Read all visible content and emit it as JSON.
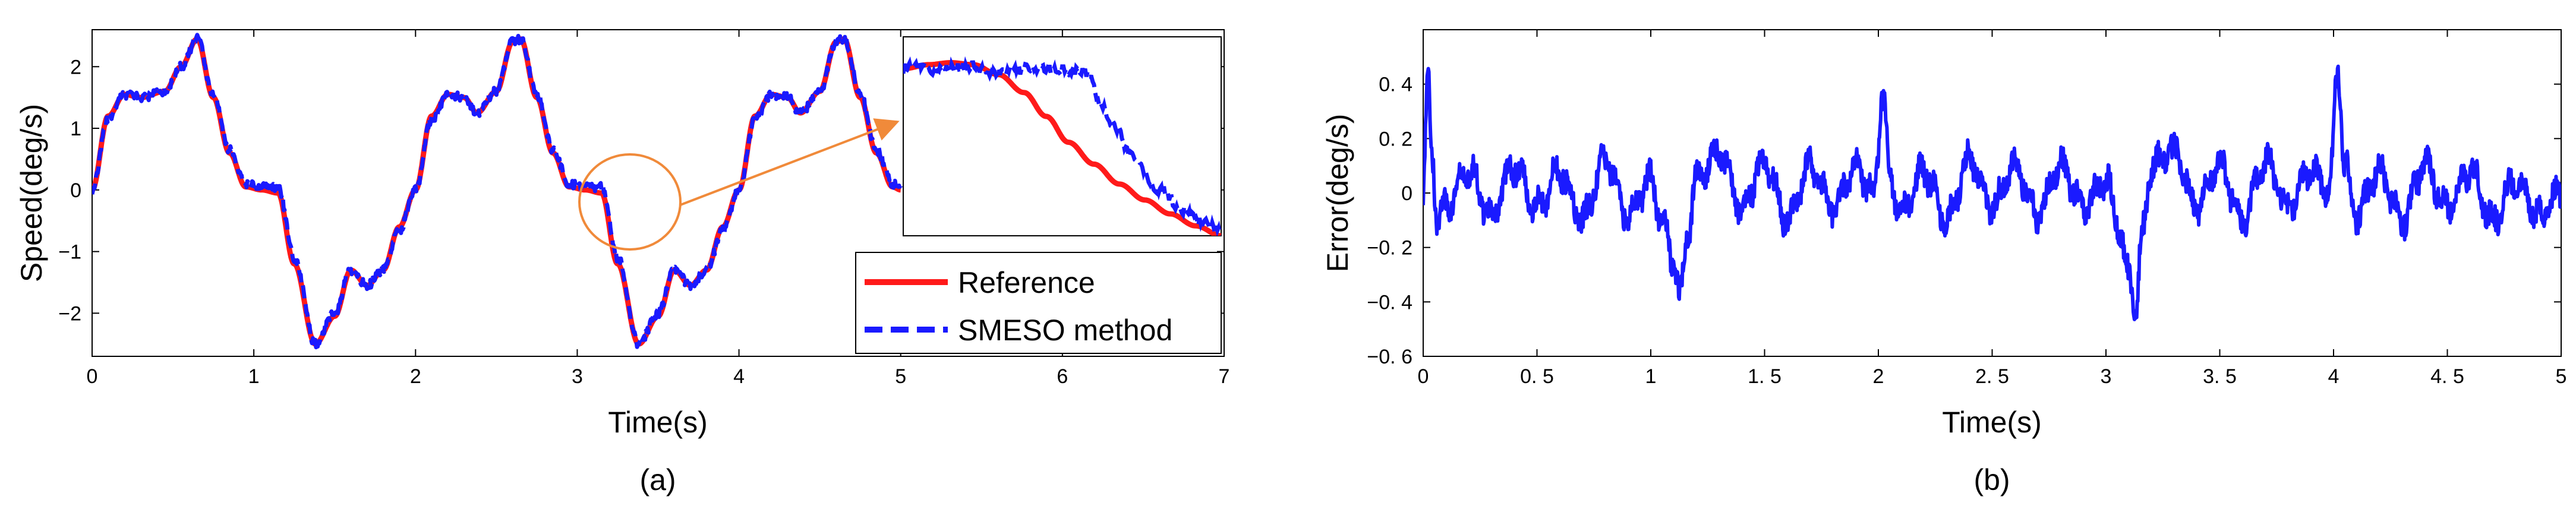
{
  "chart_data": [
    {
      "type": "line",
      "subplot_label": "(a)",
      "xlabel": "Time(s)",
      "ylabel": "Speed(deg/s)",
      "xlim": [
        0,
        7
      ],
      "ylim": [
        -2.7,
        2.6
      ],
      "xticks": [
        0,
        1,
        2,
        3,
        4,
        5,
        6,
        7
      ],
      "xtick_labels": [
        "0",
        "1",
        "2",
        "3",
        "4",
        "5",
        "6",
        "7"
      ],
      "yticks": [
        -2,
        -1,
        0,
        1,
        2
      ],
      "ytick_labels": [
        "−2",
        "−1",
        "0",
        "1",
        "2"
      ],
      "grid": false,
      "legend_position": "bottom-right",
      "series": [
        {
          "name": "Reference",
          "color": "#ff1a1a",
          "style": "solid",
          "x": [
            0,
            0.1,
            0.2,
            0.3,
            0.45,
            0.55,
            0.65,
            0.75,
            0.85,
            0.95,
            1.05,
            1.15,
            1.25,
            1.38,
            1.5,
            1.6,
            1.7,
            1.8,
            1.9,
            2.0,
            2.1,
            2.2,
            2.3,
            2.38,
            2.5,
            2.6,
            2.65,
            2.75,
            2.85,
            2.95,
            3.05,
            3.15,
            3.25,
            3.38,
            3.5,
            3.6,
            3.7,
            3.8,
            3.9,
            4.0,
            4.1,
            4.2,
            4.3,
            4.38,
            4.5,
            4.6,
            4.65,
            4.75,
            4.85,
            4.95,
            5.0
          ],
          "y": [
            0,
            1.2,
            1.55,
            1.5,
            1.6,
            2.0,
            2.45,
            1.5,
            0.6,
            0.05,
            0.0,
            -0.05,
            -1.2,
            -2.5,
            -2.05,
            -1.3,
            -1.55,
            -1.3,
            -0.6,
            0.0,
            1.2,
            1.55,
            1.5,
            1.25,
            1.6,
            2.4,
            2.45,
            1.5,
            0.6,
            0.05,
            0.0,
            -0.05,
            -1.2,
            -2.5,
            -2.05,
            -1.3,
            -1.55,
            -1.3,
            -0.6,
            0.0,
            1.2,
            1.55,
            1.5,
            1.25,
            1.6,
            2.4,
            2.45,
            1.5,
            0.6,
            0.05,
            0.0
          ]
        },
        {
          "name": "SMESO method",
          "color": "#1a1aff",
          "style": "dashed",
          "x": [
            0,
            0.1,
            0.2,
            0.3,
            0.45,
            0.55,
            0.65,
            0.75,
            0.85,
            0.95,
            1.05,
            1.15,
            1.25,
            1.38,
            1.5,
            1.6,
            1.7,
            1.8,
            1.9,
            2.0,
            2.1,
            2.2,
            2.3,
            2.38,
            2.5,
            2.6,
            2.65,
            2.75,
            2.85,
            2.95,
            3.05,
            3.15,
            3.25,
            3.38,
            3.5,
            3.6,
            3.7,
            3.8,
            3.9,
            4.0,
            4.1,
            4.2,
            4.3,
            4.38,
            4.5,
            4.6,
            4.65,
            4.75,
            4.85,
            4.95,
            5.0
          ],
          "y": [
            0,
            1.15,
            1.55,
            1.5,
            1.6,
            2.0,
            2.45,
            1.55,
            0.65,
            0.1,
            0.05,
            0.05,
            -1.1,
            -2.5,
            -2.0,
            -1.3,
            -1.55,
            -1.3,
            -0.65,
            0.0,
            1.15,
            1.55,
            1.5,
            1.25,
            1.6,
            2.4,
            2.45,
            1.55,
            0.65,
            0.1,
            0.05,
            0.05,
            -1.1,
            -2.5,
            -2.0,
            -1.3,
            -1.55,
            -1.3,
            -0.65,
            0.0,
            1.15,
            1.55,
            1.5,
            1.25,
            1.6,
            2.4,
            2.45,
            1.55,
            0.65,
            0.1,
            0.0
          ]
        }
      ],
      "annotations": [
        {
          "type": "circle",
          "center": [
            3.0,
            -0.1
          ],
          "note": "zoom region"
        },
        {
          "type": "arrow",
          "from": [
            3.3,
            -0.15
          ],
          "to": [
            5.05,
            1.0
          ],
          "note": "points to inset"
        }
      ],
      "inset": {
        "description": "zoomed view of circled region",
        "series": [
          {
            "name": "Reference",
            "x": [
              0,
              0.08,
              0.15,
              0.22,
              0.3,
              0.38,
              0.45,
              0.52,
              0.6,
              0.68,
              0.76,
              0.84,
              0.92,
              1.0
            ],
            "y": [
              0.84,
              0.86,
              0.87,
              0.86,
              0.81,
              0.72,
              0.6,
              0.47,
              0.36,
              0.26,
              0.18,
              0.11,
              0.05,
              0.0
            ]
          },
          {
            "name": "SMESO method",
            "x": [
              0,
              0.05,
              0.1,
              0.2,
              0.3,
              0.4,
              0.5,
              0.58,
              0.62,
              0.66,
              0.72,
              0.8,
              0.88,
              0.95,
              1.0
            ],
            "y": [
              0.84,
              0.86,
              0.83,
              0.85,
              0.82,
              0.84,
              0.83,
              0.82,
              0.66,
              0.56,
              0.4,
              0.24,
              0.13,
              0.06,
              0.02
            ]
          }
        ]
      }
    },
    {
      "type": "line",
      "subplot_label": "(b)",
      "xlabel": "Time(s)",
      "ylabel": "Error(deg/s)",
      "xlim": [
        0,
        5
      ],
      "ylim": [
        -0.6,
        0.6
      ],
      "xticks": [
        0,
        0.5,
        1,
        1.5,
        2,
        2.5,
        3,
        3.5,
        4,
        4.5,
        5
      ],
      "xtick_labels": [
        "0",
        "0. 5",
        "1",
        "1. 5",
        "2",
        "2. 5",
        "3",
        "3. 5",
        "4",
        "4. 5",
        "5"
      ],
      "yticks": [
        -0.6,
        -0.4,
        -0.2,
        0,
        0.2,
        0.4
      ],
      "ytick_labels": [
        "−0. 6",
        "−0. 4",
        "−0. 2",
        "0",
        "0. 2",
        "0. 4"
      ],
      "grid": false,
      "series": [
        {
          "name": "Error",
          "color": "#1a1aff",
          "style": "solid",
          "x": [
            0,
            0.02,
            0.04,
            0.06,
            0.1,
            0.2,
            0.3,
            0.4,
            0.5,
            0.6,
            0.7,
            0.8,
            0.9,
            1.0,
            1.05,
            1.1,
            1.13,
            1.16,
            1.2,
            1.3,
            1.4,
            1.5,
            1.6,
            1.7,
            1.8,
            1.9,
            1.98,
            2.02,
            2.05,
            2.1,
            2.2,
            2.3,
            2.4,
            2.5,
            2.6,
            2.7,
            2.8,
            2.9,
            3.0,
            3.05,
            3.1,
            3.13,
            3.16,
            3.2,
            3.3,
            3.4,
            3.5,
            3.6,
            3.7,
            3.8,
            3.9,
            3.98,
            4.02,
            4.05,
            4.1,
            4.2,
            4.3,
            4.4,
            4.5,
            4.6,
            4.7,
            4.8,
            4.9,
            5.0
          ],
          "y": [
            0,
            0.42,
            0.15,
            -0.1,
            -0.05,
            0.08,
            -0.08,
            0.1,
            -0.05,
            0.08,
            -0.1,
            0.12,
            -0.08,
            0.05,
            -0.1,
            -0.25,
            -0.38,
            -0.15,
            0.05,
            0.15,
            -0.05,
            0.12,
            -0.1,
            0.1,
            -0.05,
            0.1,
            0.0,
            0.37,
            0.05,
            -0.08,
            0.08,
            -0.1,
            0.12,
            -0.05,
            0.1,
            -0.08,
            0.1,
            -0.05,
            0.05,
            -0.1,
            -0.3,
            -0.43,
            -0.15,
            0.1,
            0.15,
            -0.05,
            0.1,
            -0.1,
            0.12,
            -0.05,
            0.08,
            0.0,
            0.45,
            0.1,
            -0.08,
            0.08,
            -0.1,
            0.1,
            -0.05,
            0.08,
            -0.1,
            0.05,
            -0.08,
            0.0
          ]
        }
      ]
    }
  ]
}
